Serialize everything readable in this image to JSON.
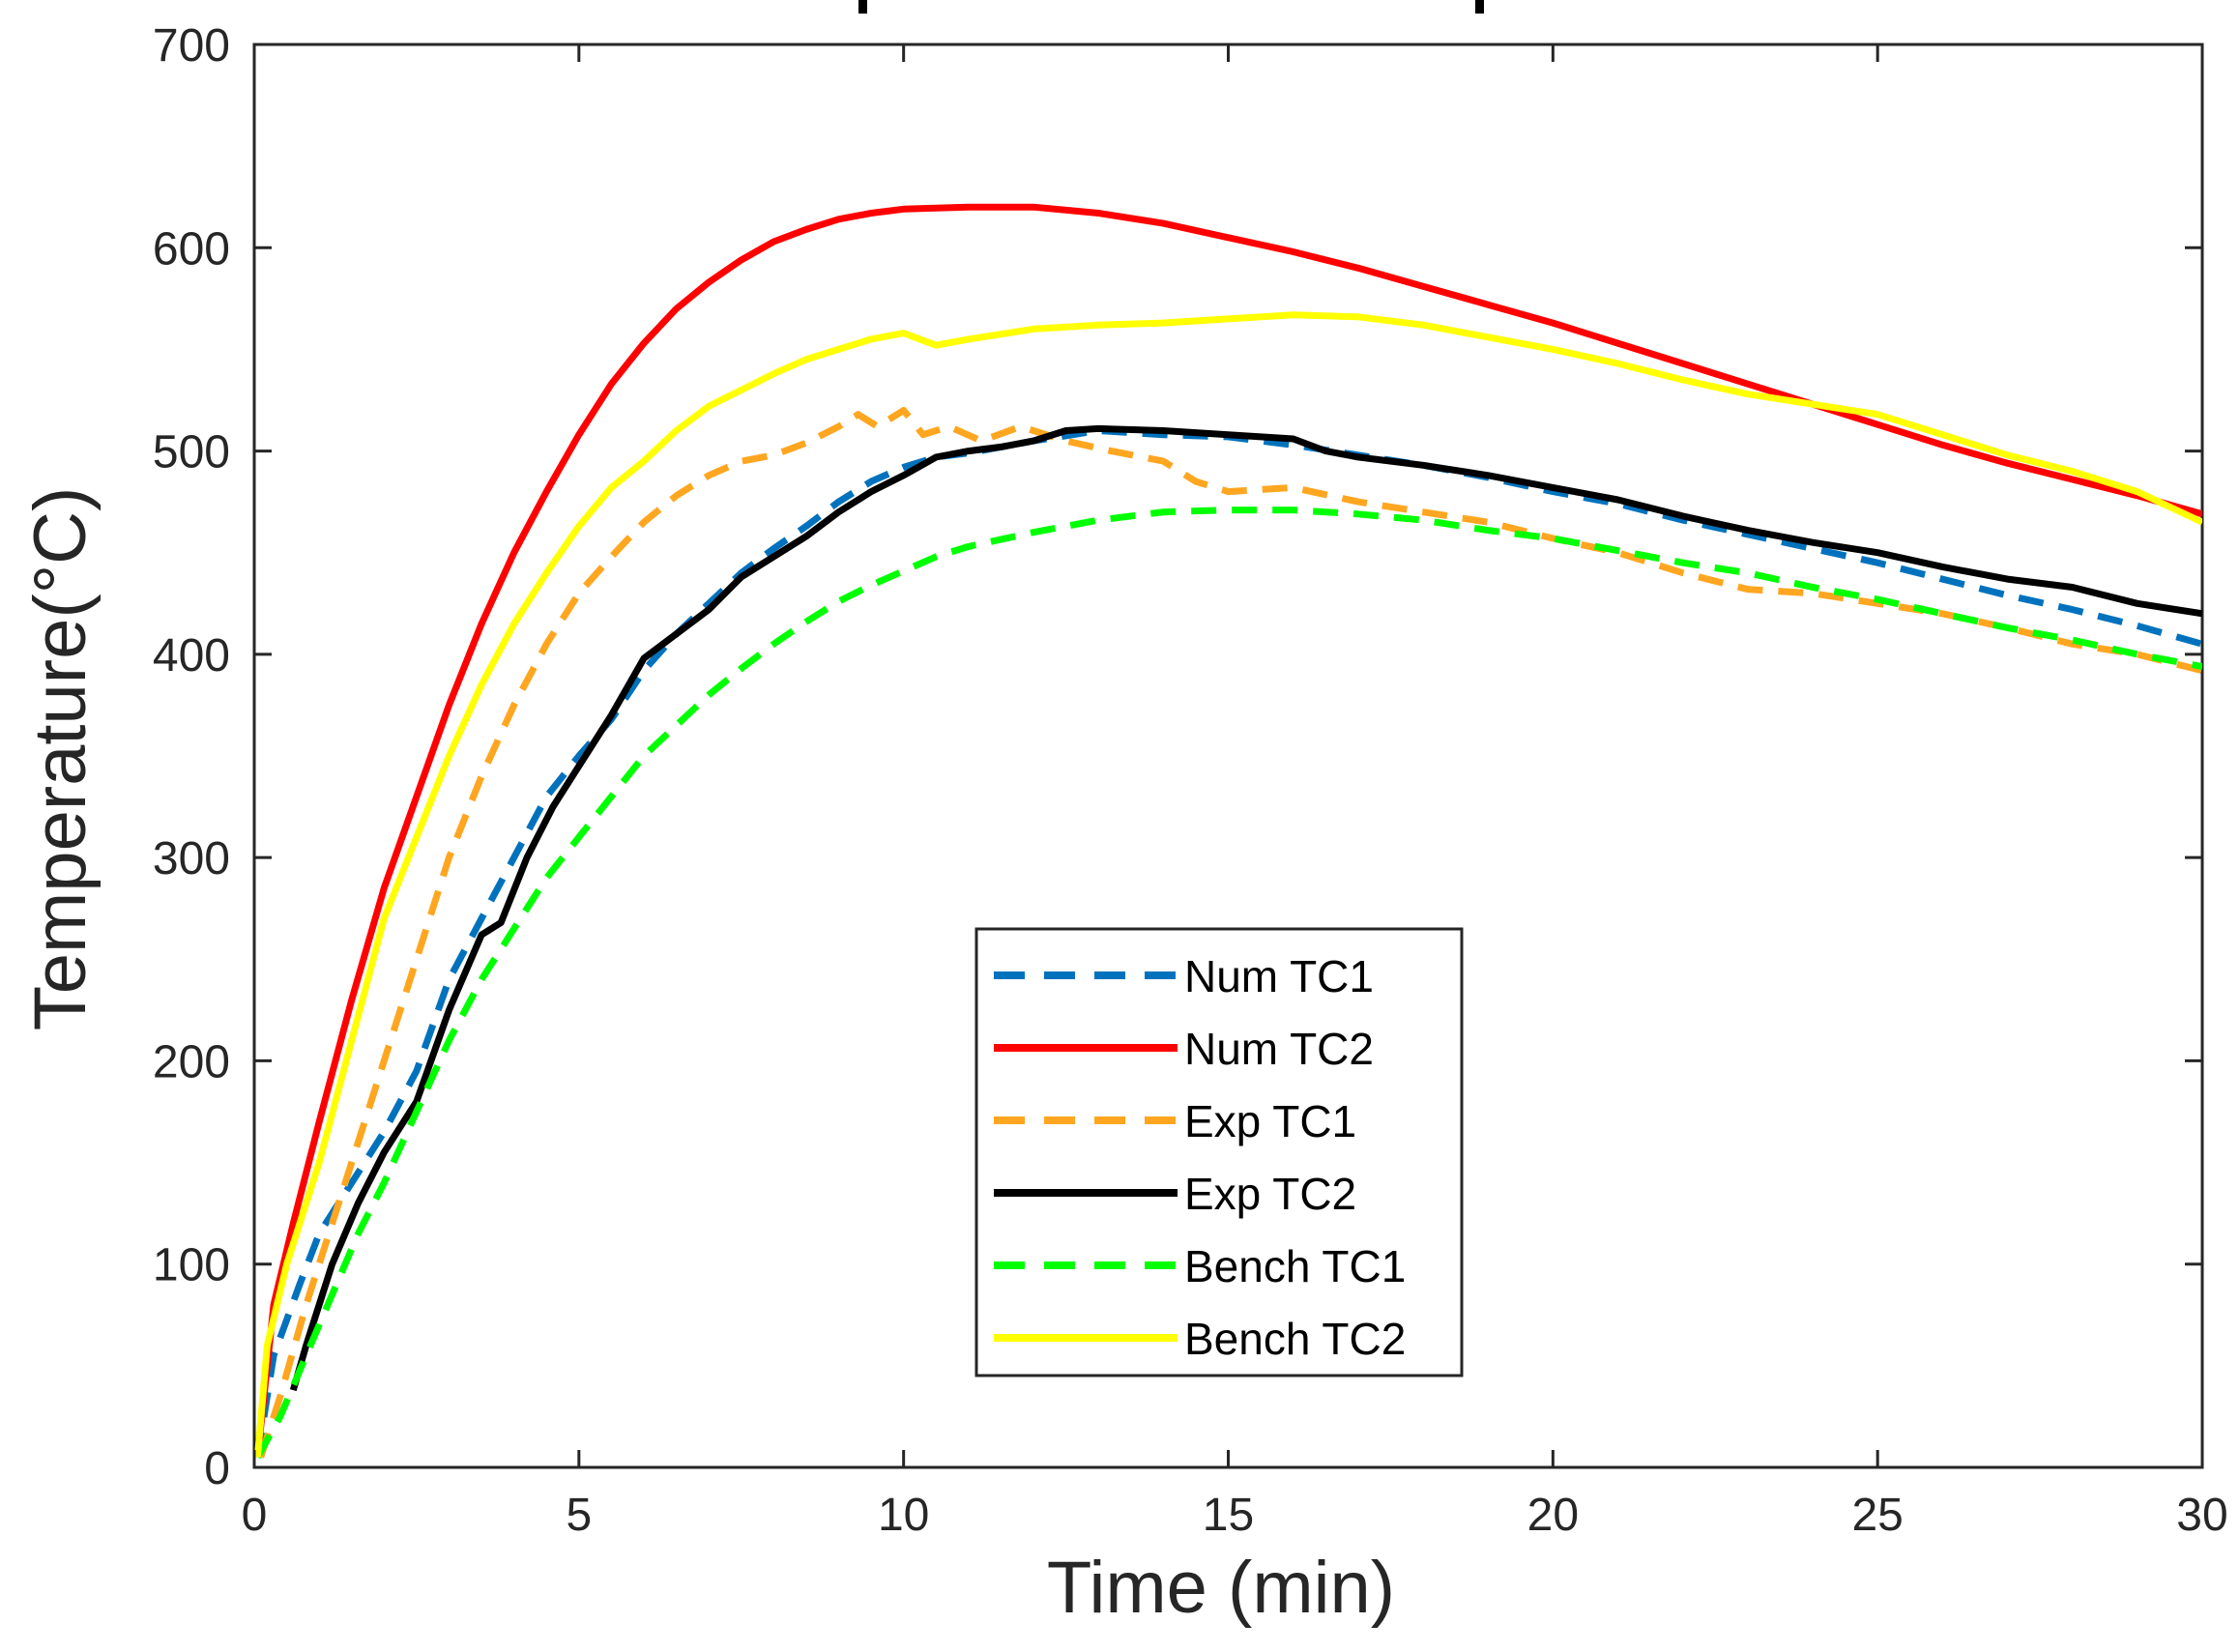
{
  "chart_data": {
    "type": "line",
    "title": "",
    "xlabel": "Time (min)",
    "ylabel": "Temperature(°C)",
    "xlim": [
      0,
      30
    ],
    "ylim": [
      0,
      700
    ],
    "xticks": [
      0,
      5,
      10,
      15,
      20,
      25,
      30
    ],
    "yticks": [
      0,
      100,
      200,
      300,
      400,
      500,
      600,
      700
    ],
    "grid": false,
    "legend_position": "lower-center",
    "series": [
      {
        "name": "Num TC1",
        "color": "#0072BD",
        "dash": "dashed",
        "points": [
          [
            0.05,
            5
          ],
          [
            0.3,
            55
          ],
          [
            0.7,
            90
          ],
          [
            1.0,
            115
          ],
          [
            1.5,
            140
          ],
          [
            2.0,
            165
          ],
          [
            2.5,
            195
          ],
          [
            3.0,
            240
          ],
          [
            3.5,
            270
          ],
          [
            4.0,
            300
          ],
          [
            4.5,
            330
          ],
          [
            5.0,
            350
          ],
          [
            5.5,
            368
          ],
          [
            6.0,
            392
          ],
          [
            6.5,
            410
          ],
          [
            7.0,
            425
          ],
          [
            7.5,
            440
          ],
          [
            8.0,
            452
          ],
          [
            8.5,
            463
          ],
          [
            9.0,
            475
          ],
          [
            9.5,
            485
          ],
          [
            10.0,
            492
          ],
          [
            10.5,
            497
          ],
          [
            11.0,
            499
          ],
          [
            12.0,
            505
          ],
          [
            13.0,
            510
          ],
          [
            14.0,
            508
          ],
          [
            15.0,
            507
          ],
          [
            16.0,
            503
          ],
          [
            17.0,
            498
          ],
          [
            18.0,
            493
          ],
          [
            19.0,
            487
          ],
          [
            20.0,
            480
          ],
          [
            21.0,
            474
          ],
          [
            22.0,
            466
          ],
          [
            23.0,
            459
          ],
          [
            24.0,
            452
          ],
          [
            25.0,
            445
          ],
          [
            26.0,
            437
          ],
          [
            27.0,
            429
          ],
          [
            28.0,
            422
          ],
          [
            29.0,
            414
          ],
          [
            30.0,
            405
          ]
        ]
      },
      {
        "name": "Num TC2",
        "color": "#FF0000",
        "dash": "solid",
        "points": [
          [
            0.05,
            5
          ],
          [
            0.3,
            80
          ],
          [
            0.6,
            120
          ],
          [
            1.0,
            170
          ],
          [
            1.5,
            230
          ],
          [
            2.0,
            285
          ],
          [
            2.5,
            330
          ],
          [
            3.0,
            375
          ],
          [
            3.5,
            415
          ],
          [
            4.0,
            450
          ],
          [
            4.5,
            480
          ],
          [
            5.0,
            508
          ],
          [
            5.5,
            533
          ],
          [
            6.0,
            553
          ],
          [
            6.5,
            570
          ],
          [
            7.0,
            583
          ],
          [
            7.5,
            594
          ],
          [
            8.0,
            603
          ],
          [
            8.5,
            609
          ],
          [
            9.0,
            614
          ],
          [
            9.5,
            617
          ],
          [
            10.0,
            619
          ],
          [
            11.0,
            620
          ],
          [
            12.0,
            620
          ],
          [
            13.0,
            617
          ],
          [
            14.0,
            612
          ],
          [
            15.0,
            605
          ],
          [
            16.0,
            598
          ],
          [
            17.0,
            590
          ],
          [
            18.0,
            581
          ],
          [
            19.0,
            572
          ],
          [
            20.0,
            563
          ],
          [
            21.0,
            553
          ],
          [
            22.0,
            543
          ],
          [
            23.0,
            533
          ],
          [
            24.0,
            523
          ],
          [
            25.0,
            513
          ],
          [
            26.0,
            503
          ],
          [
            27.0,
            494
          ],
          [
            28.0,
            486
          ],
          [
            29.0,
            478
          ],
          [
            30.0,
            469
          ]
        ]
      },
      {
        "name": "Exp TC1",
        "color": "#FFA620",
        "dash": "dashed",
        "points": [
          [
            0.1,
            5
          ],
          [
            0.4,
            35
          ],
          [
            0.8,
            80
          ],
          [
            1.2,
            120
          ],
          [
            1.6,
            160
          ],
          [
            2.0,
            200
          ],
          [
            2.5,
            250
          ],
          [
            3.0,
            300
          ],
          [
            3.5,
            340
          ],
          [
            4.0,
            375
          ],
          [
            4.5,
            405
          ],
          [
            5.0,
            430
          ],
          [
            5.5,
            448
          ],
          [
            6.0,
            465
          ],
          [
            6.5,
            478
          ],
          [
            7.0,
            488
          ],
          [
            7.5,
            495
          ],
          [
            8.0,
            498
          ],
          [
            8.5,
            504
          ],
          [
            9.0,
            512
          ],
          [
            9.3,
            518
          ],
          [
            9.6,
            512
          ],
          [
            10.0,
            520
          ],
          [
            10.3,
            508
          ],
          [
            10.7,
            512
          ],
          [
            11.2,
            505
          ],
          [
            11.8,
            512
          ],
          [
            12.5,
            505
          ],
          [
            13.2,
            500
          ],
          [
            14.0,
            495
          ],
          [
            14.5,
            485
          ],
          [
            15.0,
            480
          ],
          [
            16.0,
            482
          ],
          [
            17.0,
            475
          ],
          [
            18.0,
            470
          ],
          [
            19.0,
            465
          ],
          [
            20.0,
            457
          ],
          [
            21.0,
            450
          ],
          [
            22.0,
            440
          ],
          [
            23.0,
            432
          ],
          [
            24.0,
            430
          ],
          [
            25.0,
            425
          ],
          [
            26.0,
            420
          ],
          [
            27.0,
            413
          ],
          [
            28.0,
            405
          ],
          [
            29.0,
            400
          ],
          [
            30.0,
            392
          ]
        ]
      },
      {
        "name": "Exp TC2",
        "color": "#000000",
        "dash": "solid",
        "points": [
          [
            0.6,
            38
          ],
          [
            0.8,
            60
          ],
          [
            1.2,
            100
          ],
          [
            1.6,
            130
          ],
          [
            2.0,
            155
          ],
          [
            2.5,
            180
          ],
          [
            3.0,
            225
          ],
          [
            3.5,
            262
          ],
          [
            3.8,
            268
          ],
          [
            4.2,
            300
          ],
          [
            4.6,
            325
          ],
          [
            5.0,
            345
          ],
          [
            5.5,
            370
          ],
          [
            6.0,
            398
          ],
          [
            6.5,
            410
          ],
          [
            7.0,
            422
          ],
          [
            7.5,
            438
          ],
          [
            8.0,
            448
          ],
          [
            8.5,
            458
          ],
          [
            9.0,
            470
          ],
          [
            9.5,
            480
          ],
          [
            10.0,
            488
          ],
          [
            10.5,
            497
          ],
          [
            11.0,
            500
          ],
          [
            11.5,
            502
          ],
          [
            12.0,
            505
          ],
          [
            12.5,
            510
          ],
          [
            13.0,
            511
          ],
          [
            14.0,
            510
          ],
          [
            15.0,
            508
          ],
          [
            16.0,
            506
          ],
          [
            16.5,
            500
          ],
          [
            17.0,
            497
          ],
          [
            18.0,
            493
          ],
          [
            19.0,
            488
          ],
          [
            20.0,
            482
          ],
          [
            21.0,
            476
          ],
          [
            22.0,
            468
          ],
          [
            23.0,
            461
          ],
          [
            24.0,
            455
          ],
          [
            25.0,
            450
          ],
          [
            26.0,
            443
          ],
          [
            27.0,
            437
          ],
          [
            28.0,
            433
          ],
          [
            29.0,
            425
          ],
          [
            30.0,
            420
          ]
        ]
      },
      {
        "name": "Bench TC1",
        "color": "#00FF00",
        "dash": "dashed",
        "points": [
          [
            0.05,
            5
          ],
          [
            0.4,
            25
          ],
          [
            0.8,
            55
          ],
          [
            1.2,
            85
          ],
          [
            1.6,
            115
          ],
          [
            2.0,
            140
          ],
          [
            2.5,
            175
          ],
          [
            3.0,
            210
          ],
          [
            3.5,
            240
          ],
          [
            4.0,
            265
          ],
          [
            4.5,
            290
          ],
          [
            5.0,
            310
          ],
          [
            5.5,
            330
          ],
          [
            6.0,
            350
          ],
          [
            6.5,
            365
          ],
          [
            7.0,
            380
          ],
          [
            7.5,
            393
          ],
          [
            8.0,
            405
          ],
          [
            8.5,
            416
          ],
          [
            9.0,
            426
          ],
          [
            9.5,
            434
          ],
          [
            10.0,
            441
          ],
          [
            10.5,
            448
          ],
          [
            11.0,
            453
          ],
          [
            12.0,
            460
          ],
          [
            13.0,
            466
          ],
          [
            14.0,
            470
          ],
          [
            15.0,
            471
          ],
          [
            16.0,
            471
          ],
          [
            17.0,
            469
          ],
          [
            18.0,
            466
          ],
          [
            19.0,
            461
          ],
          [
            20.0,
            457
          ],
          [
            21.0,
            451
          ],
          [
            22.0,
            445
          ],
          [
            23.0,
            440
          ],
          [
            24.0,
            433
          ],
          [
            25.0,
            427
          ],
          [
            26.0,
            420
          ],
          [
            27.0,
            413
          ],
          [
            28.0,
            407
          ],
          [
            29.0,
            400
          ],
          [
            30.0,
            394
          ]
        ]
      },
      {
        "name": "Bench TC2",
        "color": "#FFFF00",
        "dash": "solid",
        "points": [
          [
            0.05,
            5
          ],
          [
            0.2,
            60
          ],
          [
            0.5,
            100
          ],
          [
            1.0,
            150
          ],
          [
            1.5,
            210
          ],
          [
            2.0,
            270
          ],
          [
            2.5,
            310
          ],
          [
            3.0,
            350
          ],
          [
            3.5,
            385
          ],
          [
            4.0,
            415
          ],
          [
            4.5,
            440
          ],
          [
            5.0,
            463
          ],
          [
            5.5,
            482
          ],
          [
            6.0,
            495
          ],
          [
            6.5,
            510
          ],
          [
            7.0,
            522
          ],
          [
            7.5,
            530
          ],
          [
            8.0,
            538
          ],
          [
            8.5,
            545
          ],
          [
            9.0,
            550
          ],
          [
            9.5,
            555
          ],
          [
            10.0,
            558
          ],
          [
            10.5,
            552
          ],
          [
            11.0,
            555
          ],
          [
            12.0,
            560
          ],
          [
            13.0,
            562
          ],
          [
            14.0,
            563
          ],
          [
            15.0,
            565
          ],
          [
            16.0,
            567
          ],
          [
            17.0,
            566
          ],
          [
            18.0,
            562
          ],
          [
            19.0,
            556
          ],
          [
            20.0,
            550
          ],
          [
            21.0,
            543
          ],
          [
            22.0,
            535
          ],
          [
            23.0,
            528
          ],
          [
            24.0,
            523
          ],
          [
            25.0,
            518
          ],
          [
            26.0,
            508
          ],
          [
            27.0,
            498
          ],
          [
            28.0,
            490
          ],
          [
            29.0,
            480
          ],
          [
            30.0,
            465
          ]
        ]
      }
    ]
  }
}
